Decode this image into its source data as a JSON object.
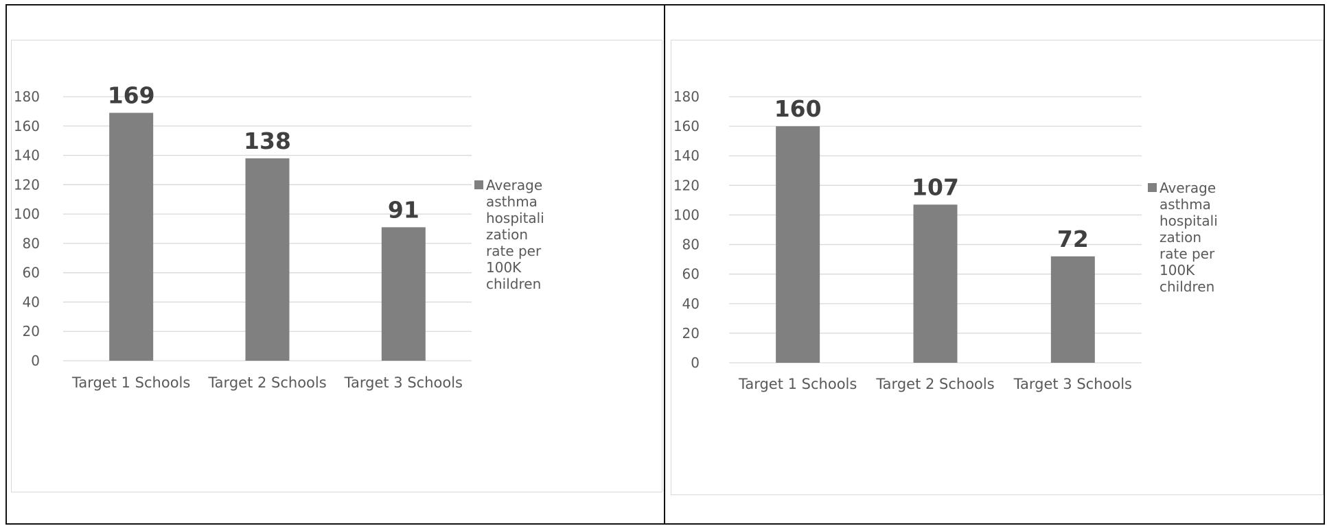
{
  "chart_data": [
    {
      "type": "bar",
      "categories": [
        "Target 1 Schools",
        "Target 2 Schools",
        "Target 3 Schools"
      ],
      "series": [
        {
          "name": "Average asthma hospitalization rate per 100K children",
          "values": [
            169,
            138,
            91
          ]
        }
      ],
      "legend_lines": [
        "Average",
        "asthma",
        "hospitali",
        "zation",
        "rate per",
        "100K",
        "children"
      ],
      "yticks": [
        0,
        20,
        40,
        60,
        80,
        100,
        120,
        140,
        160,
        180
      ],
      "ylim": [
        0,
        180
      ],
      "bar_color": "#808080",
      "grid": true,
      "legend_position": "right",
      "data_labels": true
    },
    {
      "type": "bar",
      "categories": [
        "Target 1 Schools",
        "Target 2 Schools",
        "Target 3 Schools"
      ],
      "series": [
        {
          "name": "Average asthma hospitalization rate per 100K children",
          "values": [
            160,
            107,
            72
          ]
        }
      ],
      "legend_lines": [
        "Average",
        "asthma",
        "hospitali",
        "zation",
        "rate per",
        "100K",
        "children"
      ],
      "yticks": [
        0,
        20,
        40,
        60,
        80,
        100,
        120,
        140,
        160,
        180
      ],
      "ylim": [
        0,
        180
      ],
      "bar_color": "#808080",
      "grid": true,
      "legend_position": "right",
      "data_labels": true
    }
  ]
}
